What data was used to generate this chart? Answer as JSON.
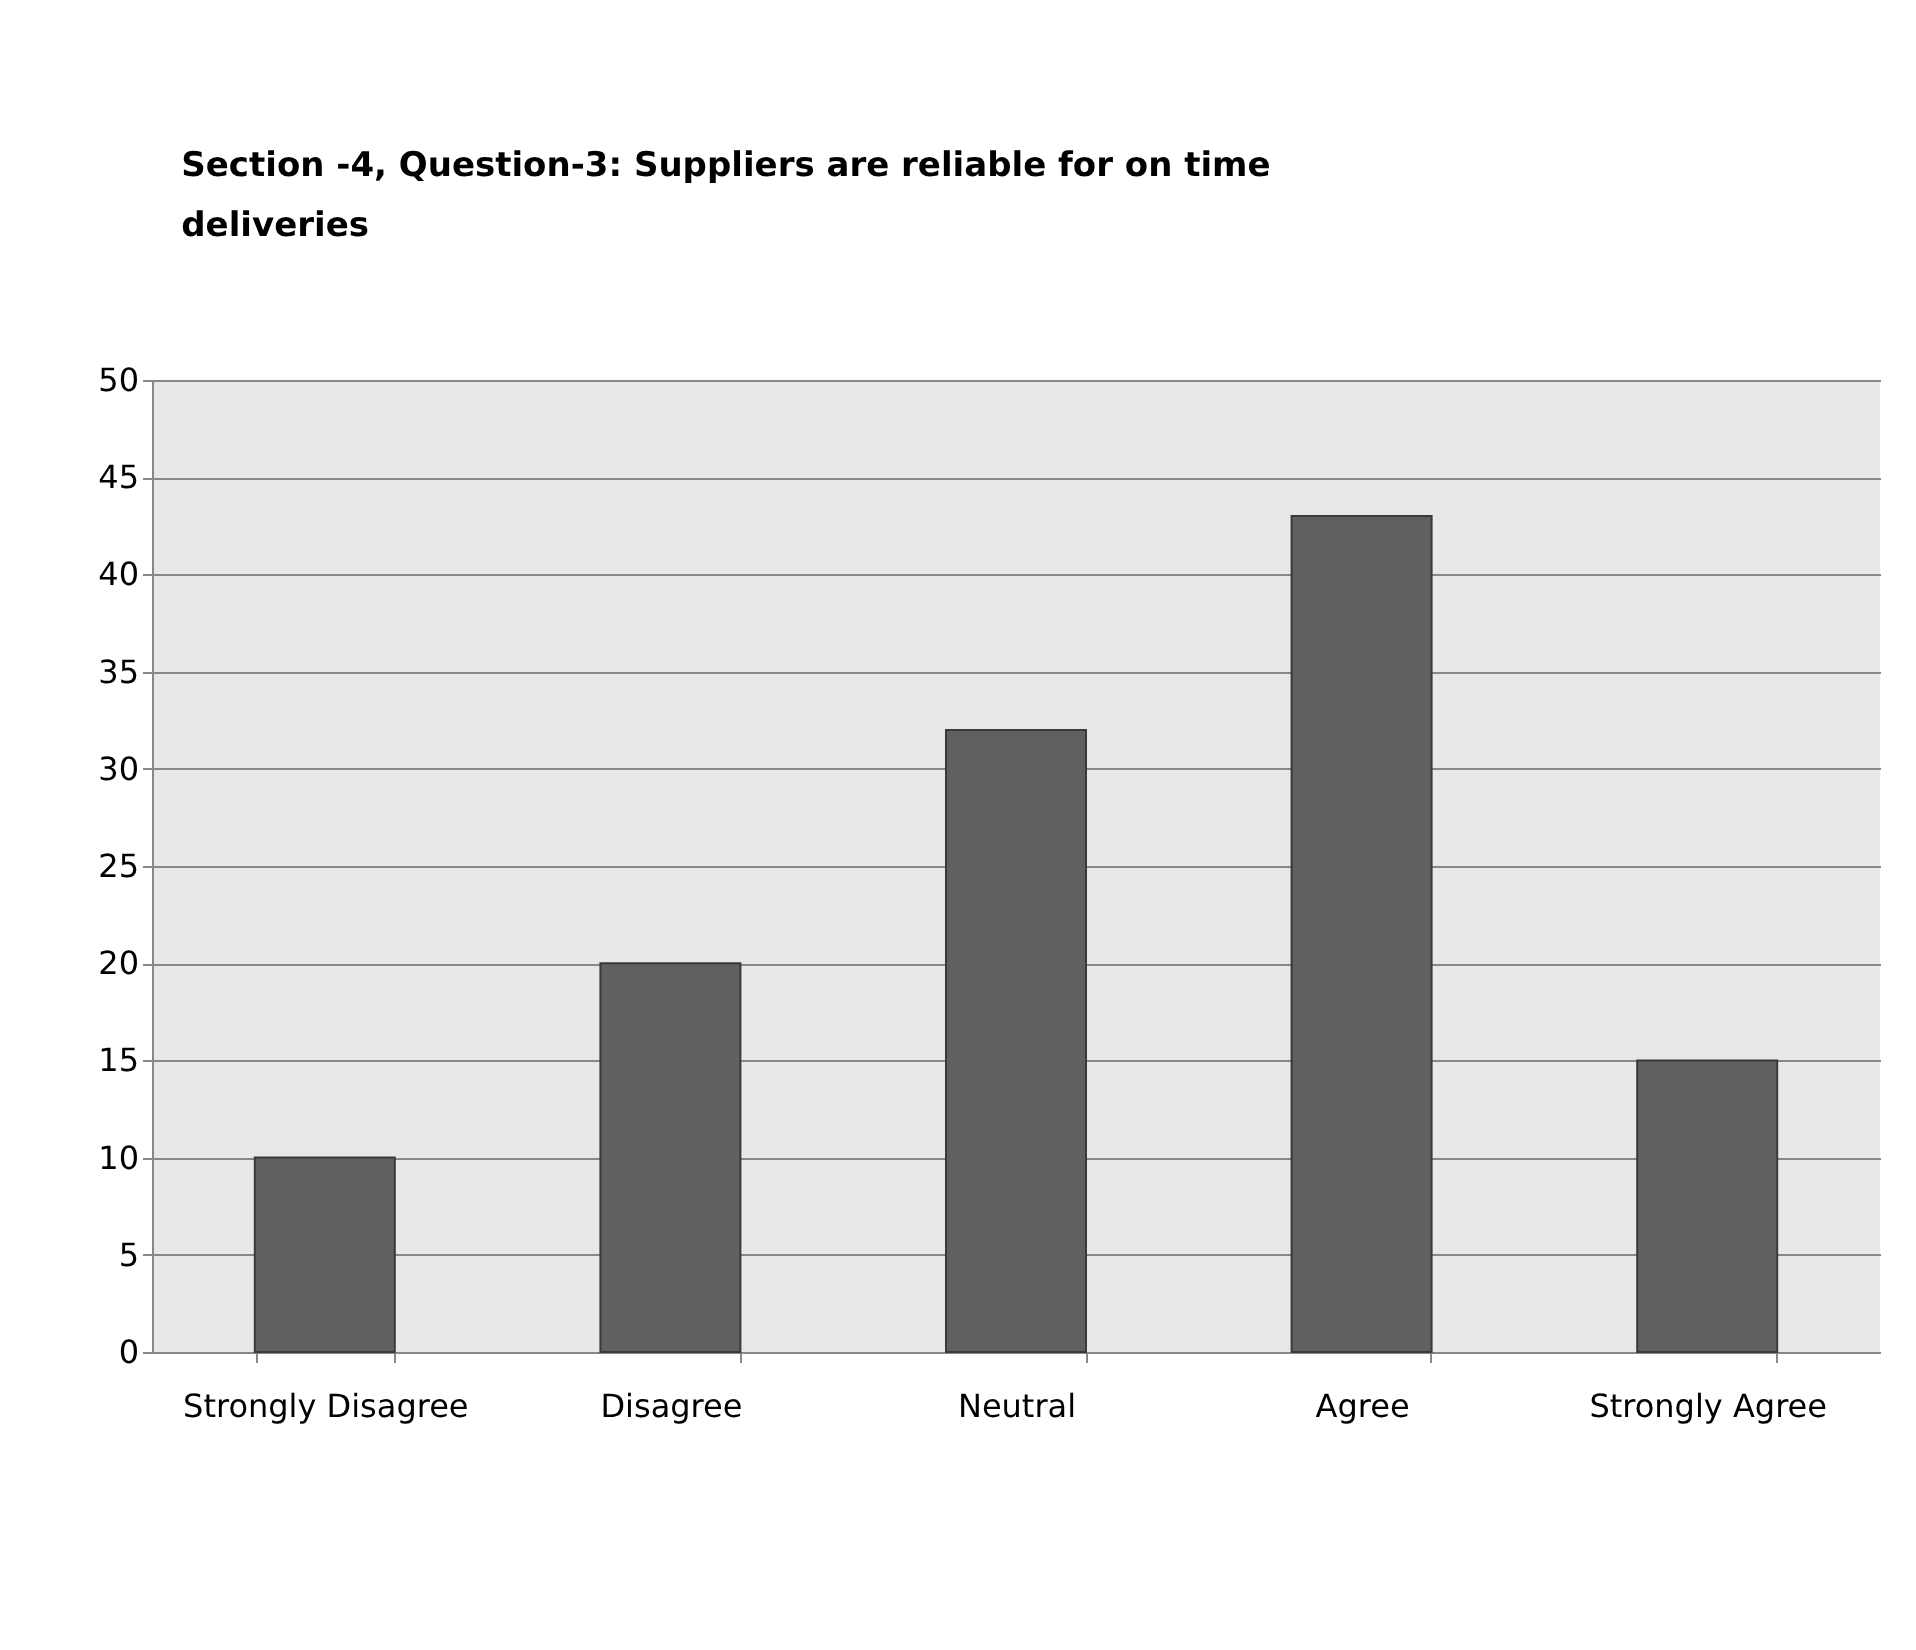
{
  "chart_data": {
    "type": "bar",
    "title": "Section -4, Question-3: Suppliers are reliable for on time deliveries",
    "categories": [
      "Strongly Disagree",
      "Disagree",
      "Neutral",
      "Agree",
      "Strongly Agree"
    ],
    "values": [
      10,
      20,
      32,
      43,
      15
    ],
    "color": "#606060",
    "ylim": [
      0,
      50
    ],
    "yticks": [
      0,
      5,
      10,
      15,
      20,
      25,
      30,
      35,
      40,
      45,
      50
    ],
    "grid": "y"
  }
}
